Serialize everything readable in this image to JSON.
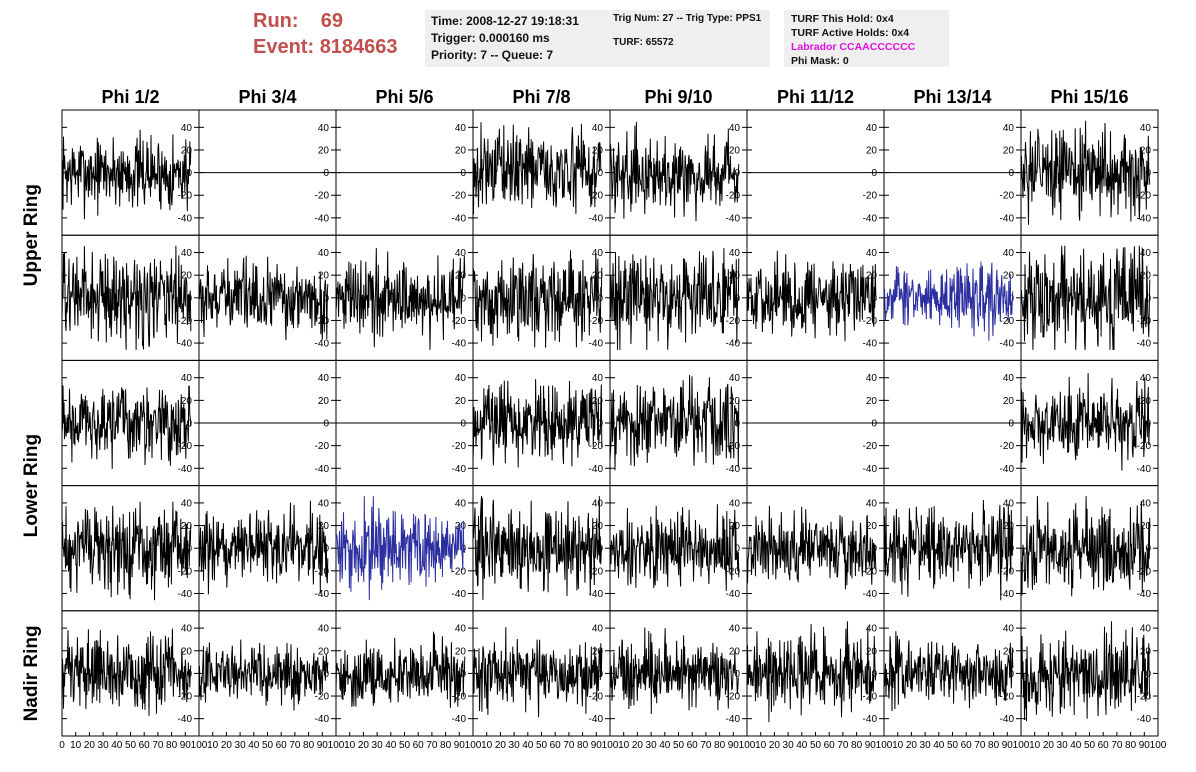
{
  "header": {
    "run_label": "Run:",
    "run_value": "69",
    "event_label": "Event:",
    "event_value": "8184663"
  },
  "info_time": {
    "time": "Time: 2008-12-27 19:18:31",
    "trigger": "Trigger: 0.000160 ms",
    "priority": "Priority: 7 -- Queue: 7"
  },
  "info_trig": {
    "trig": "Trig Num: 27 -- Trig Type: PPS1",
    "turf": "TURF: 65572"
  },
  "info_turf": {
    "this_hold": "TURF This Hold: 0x4",
    "active_holds": "TURF Active Holds: 0x4",
    "labrador": "Labrador CCAACCCCCC",
    "phi_mask": "Phi Mask: 0"
  },
  "colors": {
    "title_red": "#c0504d",
    "info_bg": "#efefef",
    "labrador_magenta": "#e010e0",
    "trace": "#000000",
    "highlight_trace": "#2b2fa0"
  },
  "chart_data": {
    "type": "line",
    "columns": [
      "Phi 1/2",
      "Phi 3/4",
      "Phi 5/6",
      "Phi 7/8",
      "Phi 9/10",
      "Phi 11/12",
      "Phi 13/14",
      "Phi 15/16"
    ],
    "ring_labels": [
      "Upper Ring",
      "Lower Ring",
      "Nadir Ring"
    ],
    "ring_row_spans": [
      2,
      2,
      1
    ],
    "xlim": [
      0,
      100
    ],
    "ylim": [
      -50,
      50
    ],
    "yticks": [
      -40,
      -20,
      0,
      20,
      40
    ],
    "x_tick_labels": [
      "0",
      "10",
      "20",
      "30",
      "40",
      "50",
      "60",
      "70",
      "80",
      "90",
      "100"
    ],
    "y_tick_labels": [
      "-40",
      "-20",
      "0",
      "20",
      "40"
    ],
    "samples_per_trace": 260,
    "trace_x_end": 94,
    "panels": [
      {
        "row": 0,
        "col": 0,
        "flat": false,
        "amp": 28,
        "color": "trace"
      },
      {
        "row": 0,
        "col": 1,
        "flat": true,
        "amp": 0,
        "color": "trace"
      },
      {
        "row": 0,
        "col": 2,
        "flat": true,
        "amp": 0,
        "color": "trace"
      },
      {
        "row": 0,
        "col": 3,
        "flat": false,
        "amp": 30,
        "color": "trace"
      },
      {
        "row": 0,
        "col": 4,
        "flat": false,
        "amp": 28,
        "color": "trace"
      },
      {
        "row": 0,
        "col": 5,
        "flat": true,
        "amp": 0,
        "color": "trace"
      },
      {
        "row": 0,
        "col": 6,
        "flat": true,
        "amp": 0,
        "color": "trace"
      },
      {
        "row": 0,
        "col": 7,
        "flat": false,
        "amp": 32,
        "color": "trace"
      },
      {
        "row": 1,
        "col": 0,
        "flat": false,
        "amp": 34,
        "color": "trace"
      },
      {
        "row": 1,
        "col": 1,
        "flat": false,
        "amp": 26,
        "color": "trace"
      },
      {
        "row": 1,
        "col": 2,
        "flat": false,
        "amp": 30,
        "color": "trace"
      },
      {
        "row": 1,
        "col": 3,
        "flat": false,
        "amp": 32,
        "color": "trace"
      },
      {
        "row": 1,
        "col": 4,
        "flat": false,
        "amp": 34,
        "color": "trace"
      },
      {
        "row": 1,
        "col": 5,
        "flat": false,
        "amp": 28,
        "color": "trace"
      },
      {
        "row": 1,
        "col": 6,
        "flat": false,
        "amp": 24,
        "color": "highlight_trace"
      },
      {
        "row": 1,
        "col": 7,
        "flat": false,
        "amp": 38,
        "color": "trace"
      },
      {
        "row": 2,
        "col": 0,
        "flat": false,
        "amp": 28,
        "color": "trace"
      },
      {
        "row": 2,
        "col": 1,
        "flat": true,
        "amp": 0,
        "color": "trace"
      },
      {
        "row": 2,
        "col": 2,
        "flat": true,
        "amp": 0,
        "color": "trace"
      },
      {
        "row": 2,
        "col": 3,
        "flat": false,
        "amp": 30,
        "color": "trace"
      },
      {
        "row": 2,
        "col": 4,
        "flat": false,
        "amp": 32,
        "color": "trace"
      },
      {
        "row": 2,
        "col": 5,
        "flat": true,
        "amp": 0,
        "color": "trace"
      },
      {
        "row": 2,
        "col": 6,
        "flat": true,
        "amp": 0,
        "color": "trace"
      },
      {
        "row": 2,
        "col": 7,
        "flat": false,
        "amp": 28,
        "color": "trace"
      },
      {
        "row": 3,
        "col": 0,
        "flat": false,
        "amp": 32,
        "color": "trace"
      },
      {
        "row": 3,
        "col": 1,
        "flat": false,
        "amp": 28,
        "color": "trace"
      },
      {
        "row": 3,
        "col": 2,
        "flat": false,
        "amp": 30,
        "color": "highlight_trace"
      },
      {
        "row": 3,
        "col": 3,
        "flat": false,
        "amp": 34,
        "color": "trace"
      },
      {
        "row": 3,
        "col": 4,
        "flat": false,
        "amp": 28,
        "color": "trace"
      },
      {
        "row": 3,
        "col": 5,
        "flat": false,
        "amp": 26,
        "color": "trace"
      },
      {
        "row": 3,
        "col": 6,
        "flat": false,
        "amp": 30,
        "color": "trace"
      },
      {
        "row": 3,
        "col": 7,
        "flat": false,
        "amp": 34,
        "color": "trace"
      },
      {
        "row": 4,
        "col": 0,
        "flat": false,
        "amp": 28,
        "color": "trace"
      },
      {
        "row": 4,
        "col": 1,
        "flat": false,
        "amp": 22,
        "color": "trace"
      },
      {
        "row": 4,
        "col": 2,
        "flat": false,
        "amp": 24,
        "color": "trace"
      },
      {
        "row": 4,
        "col": 3,
        "flat": false,
        "amp": 28,
        "color": "trace"
      },
      {
        "row": 4,
        "col": 4,
        "flat": false,
        "amp": 26,
        "color": "trace"
      },
      {
        "row": 4,
        "col": 5,
        "flat": false,
        "amp": 30,
        "color": "trace"
      },
      {
        "row": 4,
        "col": 6,
        "flat": false,
        "amp": 24,
        "color": "trace"
      },
      {
        "row": 4,
        "col": 7,
        "flat": false,
        "amp": 30,
        "color": "trace"
      }
    ]
  }
}
